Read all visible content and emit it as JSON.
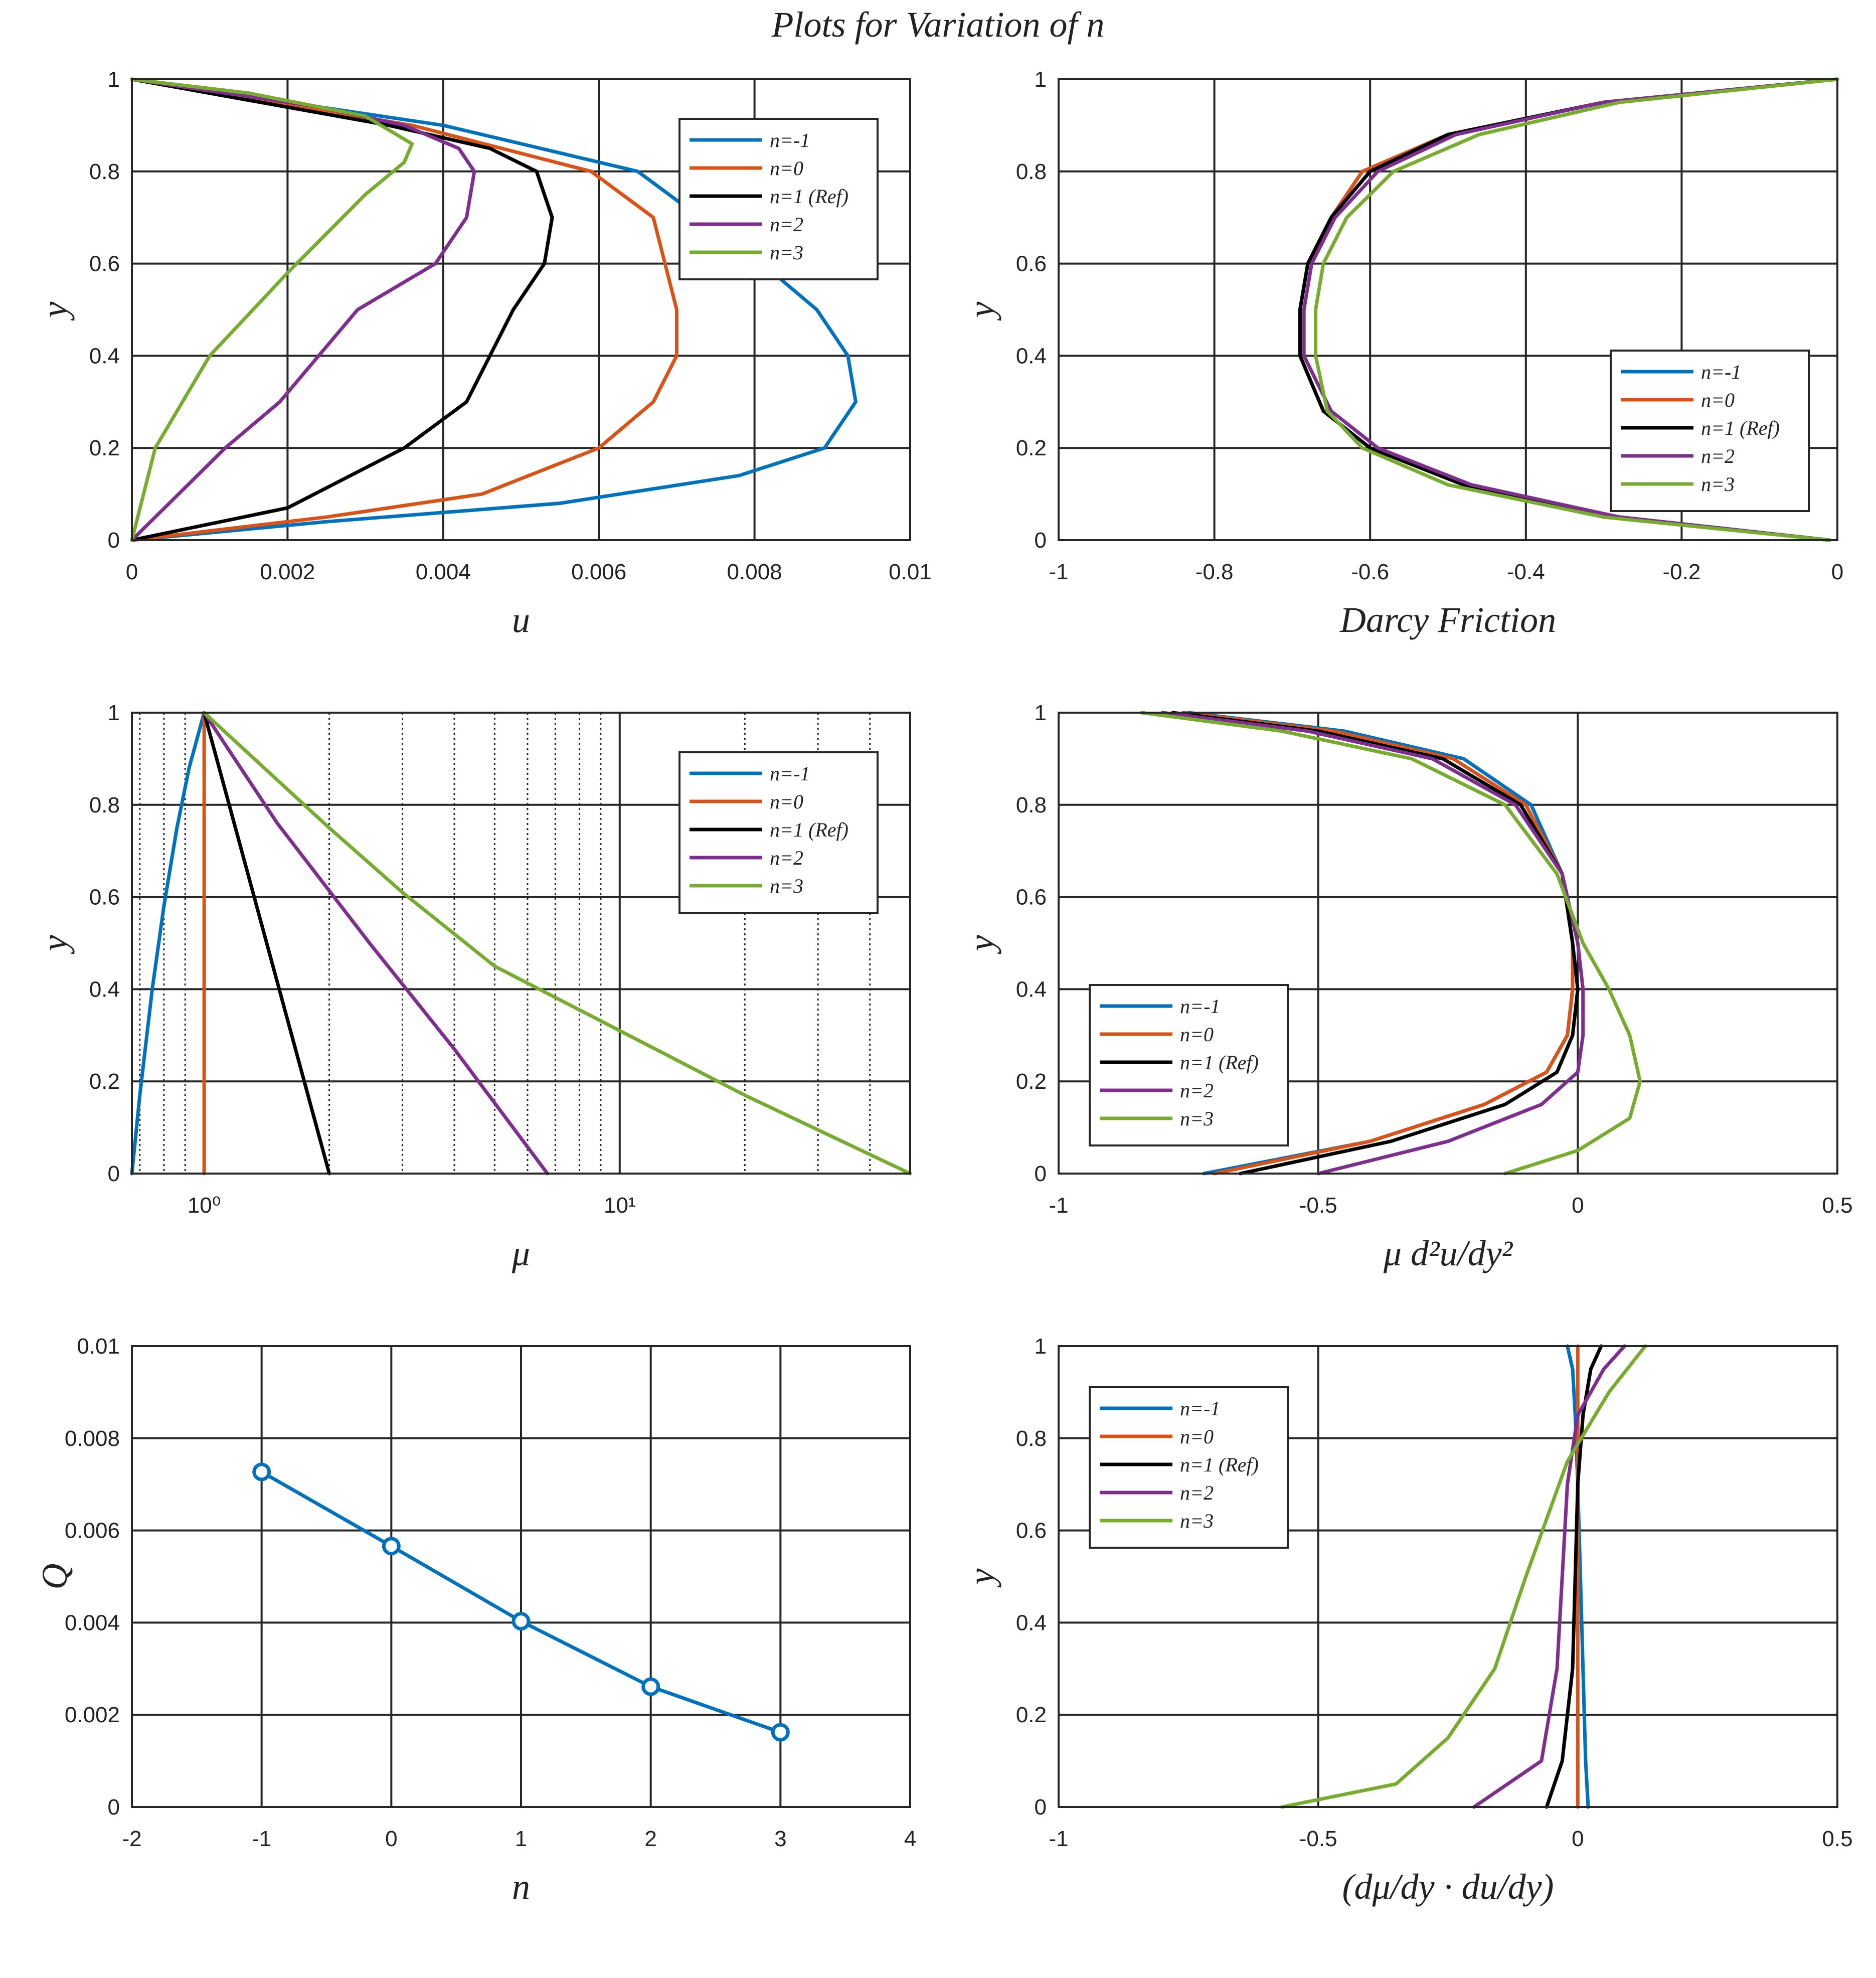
{
  "figure_title": "Plots for Variation of n",
  "legend_labels": [
    "n=-1",
    "n=0",
    "n=1 (Ref)",
    "n=2",
    "n=3"
  ],
  "series_colors": [
    "#0072BD",
    "#D95319",
    "#000000",
    "#7E2F8E",
    "#77AC30"
  ],
  "chart_data": [
    {
      "type": "line",
      "xlabel": "u",
      "ylabel": "y",
      "xlim": [
        0,
        0.01
      ],
      "ylim": [
        0,
        1
      ],
      "xticks": [
        "0",
        "0.002",
        "0.004",
        "0.006",
        "0.008",
        "0.01"
      ],
      "yticks": [
        "0",
        "0.2",
        "0.4",
        "0.6",
        "0.8",
        "1"
      ],
      "grid": true,
      "legend": "top-right",
      "series": [
        {
          "name": "n=-1",
          "x": [
            0,
            0.0025,
            0.0055,
            0.0078,
            0.0089,
            0.0093,
            0.0092,
            0.0088,
            0.0081,
            0.0065,
            0.004,
            0
          ],
          "y": [
            0,
            0.04,
            0.08,
            0.14,
            0.2,
            0.3,
            0.4,
            0.5,
            0.6,
            0.8,
            0.9,
            1
          ]
        },
        {
          "name": "n=0",
          "x": [
            0,
            0.0025,
            0.0045,
            0.006,
            0.0067,
            0.007,
            0.007,
            0.0067,
            0.0059,
            0.0036,
            0
          ],
          "y": [
            0,
            0.05,
            0.1,
            0.2,
            0.3,
            0.4,
            0.5,
            0.7,
            0.8,
            0.9,
            1
          ]
        },
        {
          "name": "n=1 (Ref)",
          "x": [
            0,
            0.002,
            0.0035,
            0.0043,
            0.0049,
            0.0053,
            0.0054,
            0.0052,
            0.0046,
            0.0033,
            0
          ],
          "y": [
            0,
            0.07,
            0.2,
            0.3,
            0.5,
            0.6,
            0.7,
            0.8,
            0.85,
            0.9,
            1
          ]
        },
        {
          "name": "n=2",
          "x": [
            0,
            0.0012,
            0.0019,
            0.0029,
            0.0039,
            0.0043,
            0.0044,
            0.0042,
            0.0035,
            0.0024,
            0
          ],
          "y": [
            0,
            0.2,
            0.3,
            0.5,
            0.6,
            0.7,
            0.8,
            0.85,
            0.9,
            0.94,
            1
          ]
        },
        {
          "name": "n=3",
          "x": [
            0,
            0.0003,
            0.001,
            0.002,
            0.003,
            0.0035,
            0.0036,
            0.003,
            0.0015,
            0
          ],
          "y": [
            0,
            0.2,
            0.4,
            0.58,
            0.75,
            0.82,
            0.86,
            0.92,
            0.97,
            1
          ]
        }
      ]
    },
    {
      "type": "line",
      "xlabel": "Darcy Friction",
      "ylabel": "y",
      "xlim": [
        -1,
        0
      ],
      "ylim": [
        0,
        1
      ],
      "xticks": [
        "-1",
        "-0.8",
        "-0.6",
        "-0.4",
        "-0.2",
        "0"
      ],
      "yticks": [
        "0",
        "0.2",
        "0.4",
        "0.6",
        "0.8",
        "1"
      ],
      "grid": true,
      "legend": "bottom-right",
      "series": [
        {
          "name": "n=-1",
          "x": [
            -0.01,
            -0.28,
            -0.48,
            -0.6,
            -0.66,
            -0.69,
            -0.69,
            -0.68,
            -0.65,
            -0.61,
            -0.5,
            -0.3,
            0
          ],
          "y": [
            0,
            0.05,
            0.12,
            0.2,
            0.28,
            0.4,
            0.5,
            0.6,
            0.7,
            0.8,
            0.88,
            0.95,
            1
          ]
        },
        {
          "name": "n=0",
          "x": [
            -0.01,
            -0.28,
            -0.48,
            -0.6,
            -0.66,
            -0.69,
            -0.69,
            -0.68,
            -0.65,
            -0.61,
            -0.5,
            -0.3,
            0
          ],
          "y": [
            0,
            0.05,
            0.12,
            0.2,
            0.28,
            0.4,
            0.5,
            0.6,
            0.7,
            0.8,
            0.88,
            0.95,
            1
          ]
        },
        {
          "name": "n=1 (Ref)",
          "x": [
            -0.01,
            -0.28,
            -0.48,
            -0.6,
            -0.66,
            -0.69,
            -0.69,
            -0.68,
            -0.65,
            -0.6,
            -0.5,
            -0.3,
            0
          ],
          "y": [
            0,
            0.05,
            0.12,
            0.2,
            0.28,
            0.4,
            0.5,
            0.6,
            0.7,
            0.8,
            0.88,
            0.95,
            1
          ]
        },
        {
          "name": "n=2",
          "x": [
            -0.01,
            -0.28,
            -0.47,
            -0.59,
            -0.65,
            -0.685,
            -0.685,
            -0.675,
            -0.645,
            -0.59,
            -0.49,
            -0.3,
            0
          ],
          "y": [
            0,
            0.05,
            0.12,
            0.2,
            0.28,
            0.4,
            0.5,
            0.6,
            0.7,
            0.8,
            0.88,
            0.95,
            1
          ]
        },
        {
          "name": "n=3",
          "x": [
            -0.01,
            -0.3,
            -0.5,
            -0.61,
            -0.655,
            -0.67,
            -0.67,
            -0.66,
            -0.63,
            -0.57,
            -0.46,
            -0.28,
            0
          ],
          "y": [
            0,
            0.05,
            0.12,
            0.2,
            0.28,
            0.4,
            0.5,
            0.6,
            0.7,
            0.8,
            0.88,
            0.95,
            1
          ]
        }
      ]
    },
    {
      "type": "line",
      "xscale": "log",
      "xlabel": "μ",
      "ylabel": "y",
      "xlim": [
        0.67,
        50
      ],
      "ylim": [
        0,
        1
      ],
      "xticks": [
        "10⁰",
        "10¹"
      ],
      "yticks": [
        "0",
        "0.2",
        "0.4",
        "0.6",
        "0.8",
        "1"
      ],
      "grid": true,
      "legend": "top-right",
      "series": [
        {
          "name": "n=-1",
          "x": [
            0.67,
            0.7,
            0.75,
            0.8,
            0.86,
            0.92,
            1
          ],
          "y": [
            0,
            0.17,
            0.4,
            0.58,
            0.75,
            0.88,
            1
          ]
        },
        {
          "name": "n=0",
          "x": [
            1,
            1
          ],
          "y": [
            0,
            1
          ]
        },
        {
          "name": "n=1 (Ref)",
          "x": [
            1,
            2
          ],
          "y": [
            1,
            0
          ]
        },
        {
          "name": "n=2",
          "x": [
            1,
            1.5,
            2.5,
            4,
            6.7
          ],
          "y": [
            1,
            0.76,
            0.5,
            0.27,
            0
          ]
        },
        {
          "name": "n=3",
          "x": [
            1,
            2,
            3,
            5,
            10,
            20,
            50
          ],
          "y": [
            1,
            0.75,
            0.61,
            0.45,
            0.31,
            0.17,
            0
          ]
        }
      ]
    },
    {
      "type": "line",
      "xlabel": "μ d²u/dy²",
      "ylabel": "y",
      "xlim": [
        -1,
        0.5
      ],
      "ylim": [
        0,
        1
      ],
      "xticks": [
        "-1",
        "-0.5",
        "0",
        "0.5"
      ],
      "yticks": [
        "0",
        "0.2",
        "0.4",
        "0.6",
        "0.8",
        "1"
      ],
      "grid": true,
      "legend": "bottom-left",
      "series": [
        {
          "name": "n=-1",
          "x": [
            -0.72,
            -0.4,
            -0.18,
            -0.06,
            -0.02,
            -0.01,
            -0.01,
            -0.03,
            -0.09,
            -0.22,
            -0.45,
            -0.75
          ],
          "y": [
            0,
            0.07,
            0.15,
            0.22,
            0.3,
            0.4,
            0.5,
            0.65,
            0.8,
            0.9,
            0.96,
            1
          ]
        },
        {
          "name": "n=0",
          "x": [
            -0.7,
            -0.4,
            -0.18,
            -0.06,
            -0.02,
            -0.01,
            -0.01,
            -0.03,
            -0.1,
            -0.24,
            -0.47,
            -0.76
          ],
          "y": [
            0,
            0.07,
            0.15,
            0.22,
            0.3,
            0.4,
            0.5,
            0.65,
            0.8,
            0.9,
            0.96,
            1
          ]
        },
        {
          "name": "n=1 (Ref)",
          "x": [
            -0.65,
            -0.36,
            -0.14,
            -0.04,
            -0.01,
            0,
            -0.01,
            -0.03,
            -0.11,
            -0.26,
            -0.5,
            -0.78
          ],
          "y": [
            0,
            0.07,
            0.15,
            0.22,
            0.3,
            0.4,
            0.5,
            0.65,
            0.8,
            0.9,
            0.96,
            1
          ]
        },
        {
          "name": "n=2",
          "x": [
            -0.5,
            -0.25,
            -0.07,
            0,
            0.01,
            0.01,
            0,
            -0.03,
            -0.12,
            -0.28,
            -0.52,
            -0.8
          ],
          "y": [
            0,
            0.07,
            0.15,
            0.22,
            0.3,
            0.4,
            0.5,
            0.65,
            0.8,
            0.9,
            0.96,
            1
          ]
        },
        {
          "name": "n=3",
          "x": [
            -0.14,
            0,
            0.1,
            0.12,
            0.1,
            0.06,
            0.01,
            -0.04,
            -0.14,
            -0.32,
            -0.57,
            -0.84
          ],
          "y": [
            0,
            0.05,
            0.12,
            0.2,
            0.3,
            0.4,
            0.5,
            0.65,
            0.8,
            0.9,
            0.96,
            1
          ]
        }
      ]
    },
    {
      "type": "line",
      "xlabel": "n",
      "ylabel": "Q",
      "xlim": [
        -2,
        4
      ],
      "ylim": [
        0,
        0.01
      ],
      "xticks": [
        "-2",
        "-1",
        "0",
        "1",
        "2",
        "3",
        "4"
      ],
      "yticks": [
        "0",
        "0.002",
        "0.004",
        "0.006",
        "0.008",
        "0.01"
      ],
      "grid": true,
      "series": [
        {
          "name": "",
          "marker": "circle",
          "x": [
            -1,
            0,
            1,
            2,
            3
          ],
          "y": [
            0.00727,
            0.00566,
            0.00403,
            0.00261,
            0.00162
          ]
        }
      ]
    },
    {
      "type": "line",
      "xlabel": "(dμ/dy · du/dy)",
      "ylabel": "y",
      "xlim": [
        -1,
        0.5
      ],
      "ylim": [
        0,
        1
      ],
      "xticks": [
        "-1",
        "-0.5",
        "0",
        "0.5"
      ],
      "yticks": [
        "0",
        "0.2",
        "0.4",
        "0.6",
        "0.8",
        "1"
      ],
      "grid": true,
      "legend": "top-left",
      "series": [
        {
          "name": "n=-1",
          "x": [
            0.02,
            0.015,
            0.01,
            0.005,
            0,
            -0.005,
            -0.01,
            -0.02
          ],
          "y": [
            0,
            0.1,
            0.3,
            0.5,
            0.7,
            0.85,
            0.95,
            1
          ]
        },
        {
          "name": "n=0",
          "x": [
            0,
            0
          ],
          "y": [
            0,
            1
          ]
        },
        {
          "name": "n=1 (Ref)",
          "x": [
            -0.06,
            -0.03,
            -0.01,
            -0.005,
            0,
            0.01,
            0.025,
            0.045
          ],
          "y": [
            0,
            0.1,
            0.3,
            0.5,
            0.7,
            0.85,
            0.95,
            1
          ]
        },
        {
          "name": "n=2",
          "x": [
            -0.2,
            -0.07,
            -0.04,
            -0.03,
            -0.02,
            0,
            0.05,
            0.09
          ],
          "y": [
            0,
            0.1,
            0.3,
            0.5,
            0.7,
            0.85,
            0.95,
            1
          ]
        },
        {
          "name": "n=3",
          "x": [
            -0.57,
            -0.35,
            -0.25,
            -0.16,
            -0.1,
            -0.02,
            0.06,
            0.13
          ],
          "y": [
            0,
            0.05,
            0.15,
            0.3,
            0.5,
            0.75,
            0.9,
            1
          ]
        }
      ]
    }
  ]
}
